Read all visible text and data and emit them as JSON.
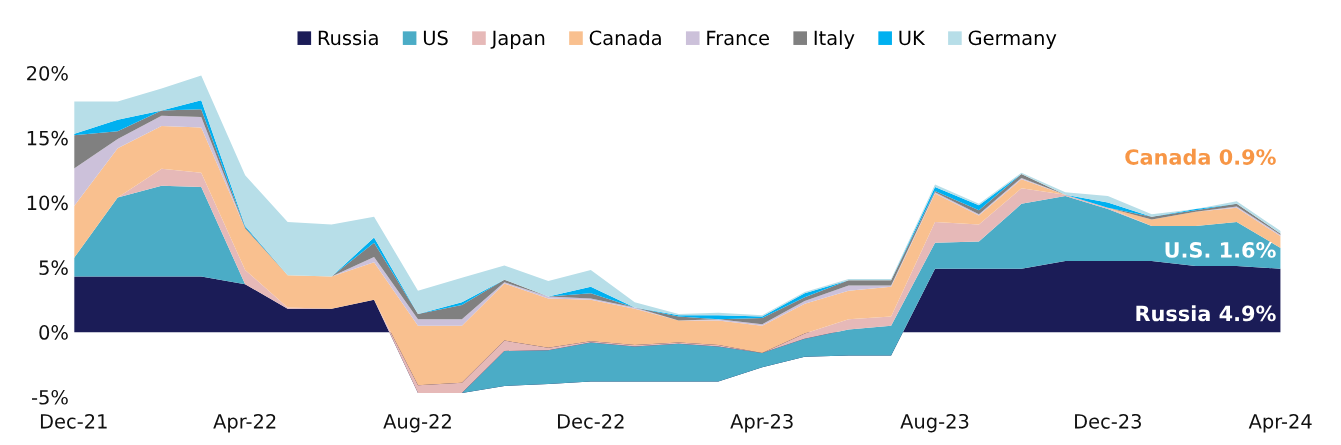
{
  "chart_data": {
    "type": "area",
    "stacked": true,
    "legend": "top",
    "grid": false,
    "x": [
      "2021-12",
      "2022-01",
      "2022-02",
      "2022-03",
      "2022-04",
      "2022-05",
      "2022-06",
      "2022-07",
      "2022-08",
      "2022-09",
      "2022-10",
      "2022-11",
      "2022-12",
      "2023-01",
      "2023-02",
      "2023-03",
      "2023-04",
      "2023-05",
      "2023-06",
      "2023-07",
      "2023-08",
      "2023-09",
      "2023-10",
      "2023-11",
      "2023-12",
      "2024-01",
      "2024-02",
      "2024-03",
      "2024-04"
    ],
    "series": [
      {
        "name": "Russia",
        "color": "#1b1c57",
        "values": [
          4.3,
          4.3,
          4.3,
          4.3,
          3.7,
          1.8,
          1.8,
          2.5,
          -4.7,
          -4.7,
          -4.15,
          -4.0,
          -3.8,
          -3.8,
          -3.8,
          -3.8,
          -2.7,
          -1.9,
          -1.8,
          -1.8,
          4.9,
          4.9,
          4.9,
          5.5,
          5.5,
          5.5,
          5.1,
          5.1,
          4.9
        ]
      },
      {
        "name": "US",
        "color": "#4bacc6",
        "values": [
          1.4,
          6.1,
          7.0,
          6.9,
          0,
          0,
          0,
          0,
          0,
          0,
          2.7,
          2.6,
          3.0,
          2.7,
          2.9,
          2.7,
          1.1,
          1.4,
          2.0,
          2.3,
          2.0,
          2.1,
          5.0,
          5.0,
          4.0,
          2.7,
          3.1,
          3.4,
          1.6
        ]
      },
      {
        "name": "Japan",
        "color": "#e6b9b8",
        "values": [
          0,
          0,
          1.3,
          1.1,
          1.1,
          0.1,
          0,
          0,
          0.6,
          0.8,
          0.8,
          0.2,
          0.1,
          0.1,
          0.1,
          0.1,
          0,
          0.4,
          0.8,
          0.7,
          1.6,
          1.3,
          1.2,
          0.1,
          0.1,
          0,
          0,
          0,
          0
        ]
      },
      {
        "name": "Canada",
        "color": "#f9c08f",
        "values": [
          4.0,
          3.8,
          3.3,
          3.5,
          3.2,
          2.5,
          2.5,
          2.9,
          4.6,
          4.4,
          4.4,
          3.8,
          3.2,
          2.8,
          1.7,
          1.9,
          2.1,
          2.3,
          2.2,
          2.3,
          2.2,
          0.7,
          0.7,
          0,
          0,
          0.5,
          1.1,
          1.1,
          0.9
        ]
      },
      {
        "name": "France",
        "color": "#ccc1da",
        "values": [
          2.9,
          0.7,
          0.8,
          0.8,
          0,
          0,
          0,
          0.4,
          0.5,
          0.5,
          0.1,
          0.15,
          0.1,
          0.1,
          0,
          0.1,
          0.1,
          0.2,
          0.4,
          0.1,
          0.1,
          0.1,
          0.1,
          0,
          0,
          0,
          0,
          0.1,
          0.1
        ]
      },
      {
        "name": "Italy",
        "color": "#808080",
        "values": [
          2.6,
          0.6,
          0.4,
          0.6,
          0.1,
          0,
          0,
          1.1,
          0.4,
          1.1,
          0.2,
          0,
          0.4,
          0,
          0.3,
          0,
          0.5,
          0.3,
          0.4,
          0.4,
          0.1,
          0.3,
          0.3,
          0,
          0,
          0.2,
          0.1,
          0.2,
          0.1
        ]
      },
      {
        "name": "UK",
        "color": "#00b0f0",
        "values": [
          0.1,
          0.9,
          0,
          0.7,
          0.1,
          0,
          0,
          0.4,
          0,
          0.2,
          0,
          0,
          0.5,
          0,
          0.1,
          0.3,
          0.1,
          0.3,
          0,
          0,
          0.3,
          0.4,
          0,
          0,
          0.4,
          0,
          0.1,
          0,
          0
        ]
      },
      {
        "name": "Germany",
        "color": "#b7dee8",
        "values": [
          2.5,
          1.4,
          1.7,
          1.9,
          3.9,
          4.1,
          4.0,
          1.6,
          1.8,
          1.9,
          1.1,
          1.2,
          1.3,
          0.4,
          0.1,
          0.2,
          0.1,
          0.1,
          0.1,
          0.1,
          0.2,
          0.1,
          0.1,
          0.2,
          0.5,
          0.2,
          0,
          0.2,
          0.2
        ]
      }
    ],
    "xlim": [
      "2021-12",
      "2024-04"
    ],
    "xticks": [
      {
        "value": "2021-12",
        "label": "Dec-21"
      },
      {
        "value": "2022-04",
        "label": "Apr-22"
      },
      {
        "value": "2022-08",
        "label": "Aug-22"
      },
      {
        "value": "2022-12",
        "label": "Dec-22"
      },
      {
        "value": "2023-04",
        "label": "Apr-23"
      },
      {
        "value": "2023-08",
        "label": "Aug-23"
      },
      {
        "value": "2023-12",
        "label": "Dec-23"
      },
      {
        "value": "2024-04",
        "label": "Apr-24"
      }
    ],
    "ylim": [
      -5,
      20
    ],
    "yticks": [
      {
        "value": -5,
        "label": "-5%"
      },
      {
        "value": 0,
        "label": "0%"
      },
      {
        "value": 5,
        "label": "5%"
      },
      {
        "value": 10,
        "label": "10%"
      },
      {
        "value": 15,
        "label": "15%"
      },
      {
        "value": 20,
        "label": "20%"
      }
    ],
    "annotations": [
      "Canada 0.9%",
      {
        "text": "U.S. 1.6%",
        "x": "2024-04",
        "y": 6.2
      },
      {
        "text": "Russia 4.9%",
        "x": "2024-04",
        "y": 1.3
      }
    ]
  }
}
